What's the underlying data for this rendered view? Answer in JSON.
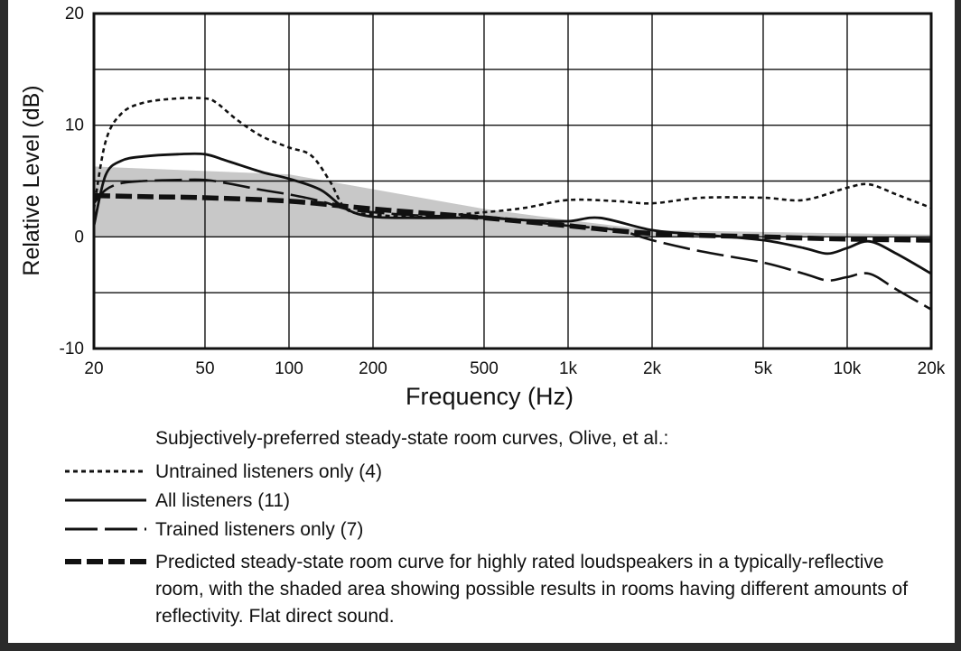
{
  "chart_data": {
    "type": "line",
    "xlabel": "Frequency (Hz)",
    "ylabel": "Relative Level (dB)",
    "x_scale": "log",
    "xlim": [
      20,
      20000
    ],
    "ylim": [
      -10,
      20
    ],
    "x_ticks": [
      {
        "value": 20,
        "label": "20"
      },
      {
        "value": 50,
        "label": "50"
      },
      {
        "value": 100,
        "label": "100"
      },
      {
        "value": 200,
        "label": "200"
      },
      {
        "value": 500,
        "label": "500"
      },
      {
        "value": 1000,
        "label": "1k"
      },
      {
        "value": 2000,
        "label": "2k"
      },
      {
        "value": 5000,
        "label": "5k"
      },
      {
        "value": 10000,
        "label": "10k"
      },
      {
        "value": 20000,
        "label": "20k"
      }
    ],
    "y_ticks": [
      {
        "value": 20,
        "label": "20"
      },
      {
        "value": 10,
        "label": "10"
      },
      {
        "value": 0,
        "label": "0"
      },
      {
        "value": -10,
        "label": "-10"
      }
    ],
    "grid": true,
    "shaded_area": {
      "upper": [
        [
          20,
          6.3
        ],
        [
          100,
          5.6
        ],
        [
          500,
          2.5
        ],
        [
          1000,
          1.5
        ],
        [
          2000,
          0.6
        ],
        [
          20000,
          0.2
        ]
      ],
      "lower": [
        [
          20,
          0
        ],
        [
          20000,
          0
        ]
      ]
    },
    "series": [
      {
        "name": "Untrained listeners only (4)",
        "style": "dotted",
        "x": [
          20,
          22,
          25,
          30,
          40,
          50,
          55,
          65,
          80,
          100,
          120,
          140,
          160,
          200,
          300,
          500,
          700,
          1000,
          1500,
          2000,
          3000,
          5000,
          7000,
          10000,
          12000,
          15000,
          20000
        ],
        "y": [
          2.5,
          8.5,
          11.0,
          12.0,
          12.4,
          12.4,
          12.0,
          10.5,
          9.0,
          8.0,
          7.3,
          5.0,
          2.5,
          2.0,
          1.8,
          2.2,
          2.6,
          3.3,
          3.2,
          3.0,
          3.5,
          3.5,
          3.3,
          4.4,
          4.7,
          3.8,
          2.6
        ]
      },
      {
        "name": "All listeners (11)",
        "style": "solid",
        "x": [
          20,
          22,
          25,
          30,
          40,
          50,
          60,
          80,
          100,
          130,
          160,
          200,
          300,
          500,
          700,
          1000,
          1300,
          2000,
          3000,
          5000,
          7000,
          8500,
          10000,
          12000,
          15000,
          20000
        ],
        "y": [
          1.0,
          5.5,
          6.8,
          7.2,
          7.4,
          7.4,
          6.8,
          5.8,
          5.2,
          4.2,
          2.5,
          1.8,
          1.7,
          1.7,
          1.5,
          1.4,
          1.7,
          0.6,
          0.2,
          -0.3,
          -1.0,
          -1.5,
          -1.0,
          -0.4,
          -1.5,
          -3.3
        ]
      },
      {
        "name": "Trained listeners only (7)",
        "style": "longdash",
        "x": [
          20,
          22,
          25,
          30,
          40,
          50,
          60,
          80,
          100,
          130,
          160,
          200,
          300,
          500,
          700,
          1000,
          1500,
          2000,
          3000,
          5000,
          7000,
          8500,
          10000,
          12000,
          15000,
          20000
        ],
        "y": [
          3.0,
          4.2,
          4.8,
          5.0,
          5.1,
          5.1,
          4.8,
          4.2,
          3.8,
          3.2,
          2.5,
          2.2,
          1.9,
          1.8,
          1.4,
          1.0,
          0.6,
          -0.3,
          -1.3,
          -2.3,
          -3.3,
          -3.9,
          -3.6,
          -3.3,
          -4.7,
          -6.5
        ]
      },
      {
        "name": "Predicted steady-state room curve for highly rated loudspeakers in a typically-reflective room, with the shaded area showing possible results in rooms having different amounts of reflectivity.  Flat direct sound.",
        "style": "heavydash",
        "x": [
          20,
          30,
          50,
          100,
          200,
          500,
          1000,
          2000,
          5000,
          10000,
          20000
        ],
        "y": [
          3.7,
          3.6,
          3.5,
          3.2,
          2.5,
          1.7,
          1.0,
          0.3,
          0.0,
          -0.2,
          -0.3
        ]
      }
    ],
    "legend": {
      "title": "Subjectively-preferred steady-state room curves, Olive, et al.:",
      "placement": "bottom"
    },
    "colors": {
      "line": "#111111",
      "shade": "#c8c8c8",
      "grid": "#111111"
    }
  }
}
